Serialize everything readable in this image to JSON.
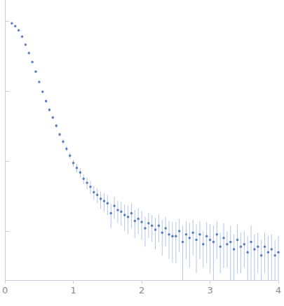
{
  "chart_data": {
    "type": "scatter",
    "color": "#3a63b5",
    "marker": "circle",
    "log": "y",
    "grid": false,
    "tick_labels": "x",
    "xlim": [
      0,
      4
    ],
    "xticks": [
      0,
      1,
      2,
      3,
      4
    ],
    "ylim": [
      0.0002,
      2
    ],
    "yticks": [
      0.001,
      0.01,
      0.1,
      1
    ],
    "x": [
      0.1,
      0.15,
      0.2,
      0.25,
      0.3,
      0.35,
      0.4,
      0.45,
      0.5,
      0.55,
      0.6,
      0.65,
      0.7,
      0.75,
      0.8,
      0.85,
      0.9,
      0.95,
      1.0,
      1.05,
      1.1,
      1.15,
      1.2,
      1.25,
      1.3,
      1.35,
      1.4,
      1.45,
      1.5,
      1.55,
      1.6,
      1.65,
      1.7,
      1.75,
      1.8,
      1.85,
      1.9,
      1.95,
      2.0,
      2.05,
      2.1,
      2.15,
      2.2,
      2.25,
      2.3,
      2.35,
      2.4,
      2.45,
      2.5,
      2.55,
      2.6,
      2.65,
      2.7,
      2.75,
      2.8,
      2.85,
      2.9,
      2.95,
      3.0,
      3.05,
      3.1,
      3.15,
      3.2,
      3.25,
      3.3,
      3.35,
      3.4,
      3.45,
      3.5,
      3.55,
      3.6,
      3.65,
      3.7,
      3.75,
      3.8,
      3.85,
      3.9,
      3.95,
      4.0
    ],
    "values": [
      0.93,
      0.85,
      0.74,
      0.6,
      0.46,
      0.35,
      0.26,
      0.19,
      0.135,
      0.098,
      0.072,
      0.054,
      0.042,
      0.032,
      0.024,
      0.019,
      0.015,
      0.012,
      0.0094,
      0.008,
      0.0069,
      0.0056,
      0.0049,
      0.0043,
      0.0036,
      0.0033,
      0.0029,
      0.0027,
      0.0025,
      0.0018,
      0.0023,
      0.002,
      0.0019,
      0.0017,
      0.0016,
      0.0018,
      0.0014,
      0.0015,
      0.00135,
      0.0011,
      0.0013,
      0.0012,
      0.00105,
      0.0012,
      0.00095,
      0.0011,
      0.0009,
      0.00085,
      0.00085,
      0.001,
      0.0007,
      0.0009,
      0.0008,
      0.00095,
      0.00075,
      0.0009,
      0.00065,
      0.00085,
      0.00075,
      0.0007,
      0.0009,
      0.0006,
      0.0008,
      0.00065,
      0.0007,
      0.00055,
      0.00075,
      0.0006,
      0.00065,
      0.0005,
      0.0007,
      0.00055,
      0.0006,
      0.00045,
      0.0006,
      0.0005,
      0.00055,
      0.00045,
      0.0005
    ],
    "errors": [
      0.009,
      0.008,
      0.007,
      0.006,
      0.005,
      0.004,
      0.003,
      0.002,
      0.002,
      0.002,
      0.002,
      0.002,
      0.002,
      0.002,
      0.0015,
      0.0015,
      0.0013,
      0.0012,
      0.0011,
      0.0011,
      0.001,
      0.0009,
      0.0009,
      0.0009,
      0.0008,
      0.0008,
      0.0008,
      0.0008,
      0.0008,
      0.0007,
      0.0008,
      0.0007,
      0.0007,
      0.0007,
      0.0007,
      0.0007,
      0.0006,
      0.0006,
      0.0006,
      0.0005,
      0.0005,
      0.0005,
      0.0005,
      0.0005,
      0.0005,
      0.0005,
      0.0005,
      0.0005,
      0.0005,
      0.0005,
      0.0005,
      0.0005,
      0.0005,
      0.0005,
      0.0005,
      0.0005,
      0.00035,
      0.0005,
      0.0005,
      0.0005,
      0.0005,
      0.00035,
      0.0005,
      0.00035,
      0.0005,
      0.00035,
      0.0005,
      0.00035,
      0.00035,
      0.00035,
      0.0005,
      0.00035,
      0.00035,
      0.0003,
      0.00035,
      0.00035,
      0.00035,
      0.0003,
      0.00035
    ]
  }
}
